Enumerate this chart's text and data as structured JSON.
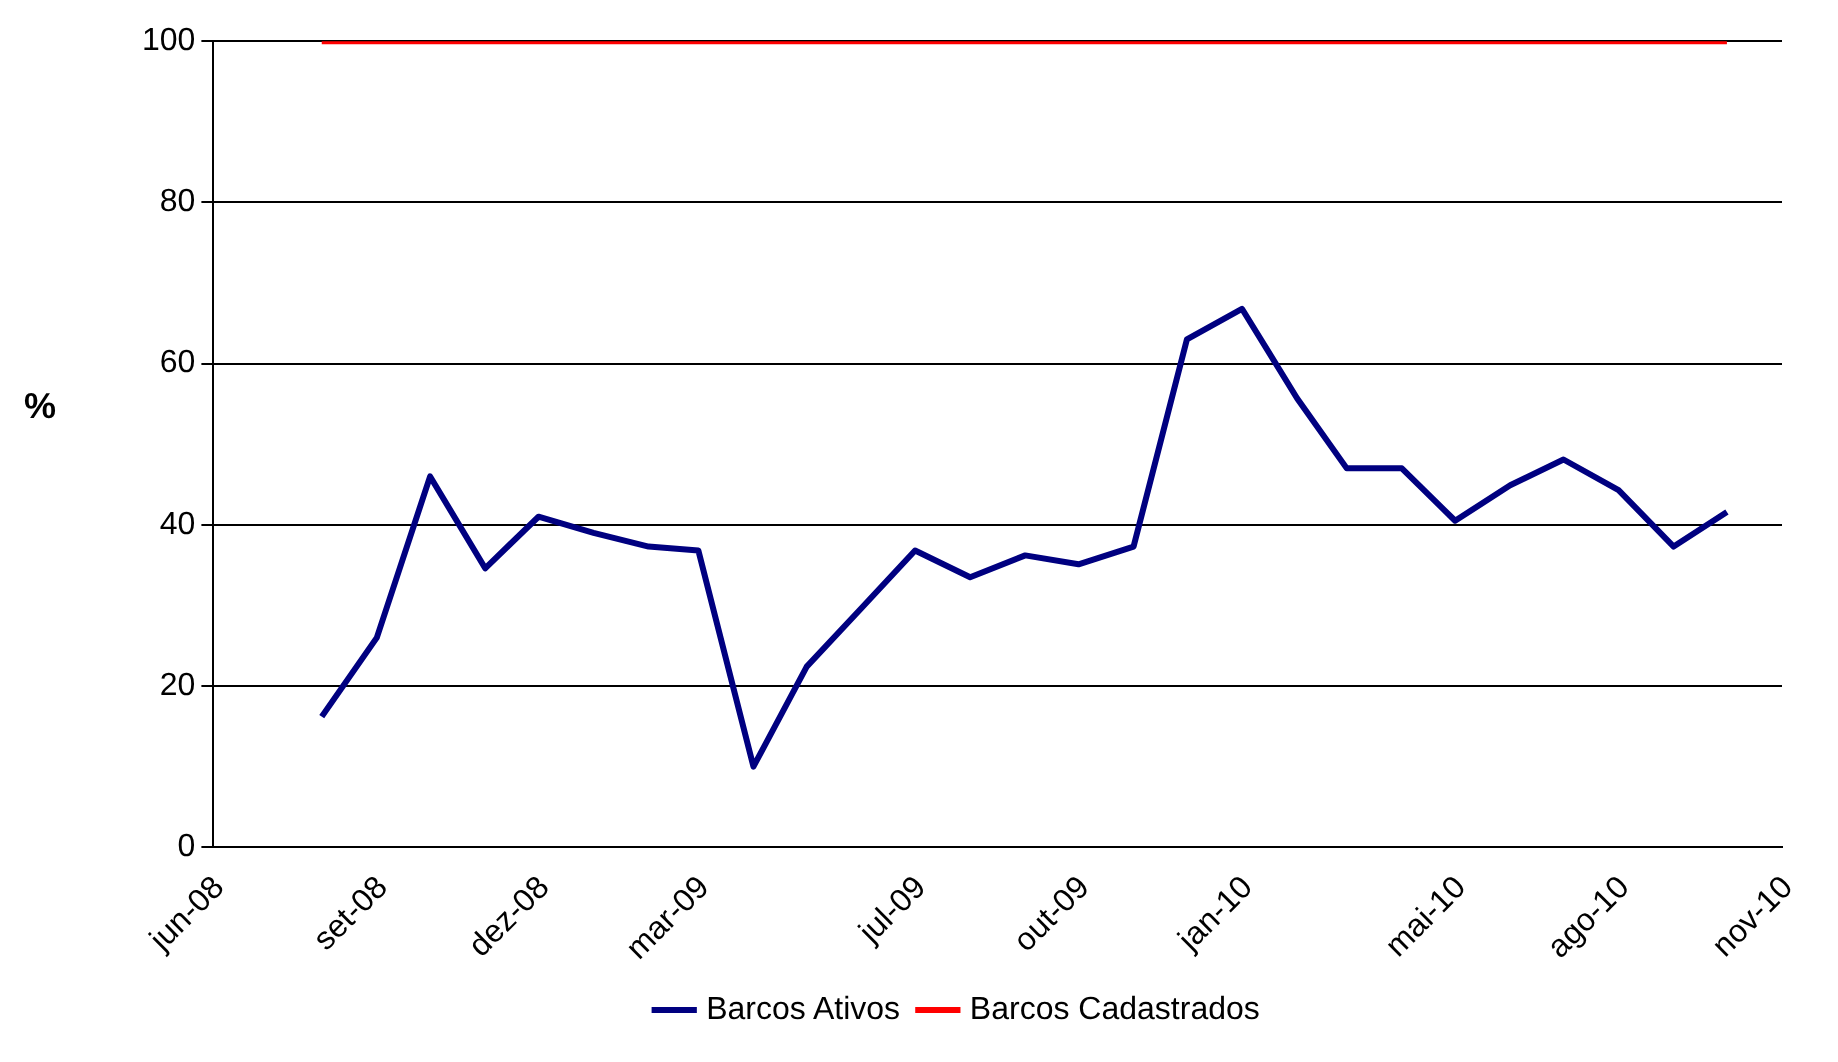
{
  "chart_data": {
    "type": "line",
    "ylabel": "%",
    "x": [
      "2008-08-01",
      "2008-09-01",
      "2008-10-01",
      "2008-11-01",
      "2008-12-01",
      "2009-01-01",
      "2009-02-01",
      "2009-03-01",
      "2009-04-01",
      "2009-05-01",
      "2009-06-01",
      "2009-07-01",
      "2009-08-01",
      "2009-09-01",
      "2009-10-01",
      "2009-11-01",
      "2009-12-01",
      "2010-01-01",
      "2010-02-01",
      "2010-03-01",
      "2010-04-01",
      "2010-05-01",
      "2010-06-01",
      "2010-07-01",
      "2010-08-01",
      "2010-09-01",
      "2010-10-01"
    ],
    "series": [
      {
        "name": "Barcos Ativos",
        "color": "#000080",
        "values": [
          16.2,
          26,
          46,
          34.6,
          41,
          39,
          37.3,
          36.8,
          10,
          22.4,
          29.7,
          36.8,
          33.5,
          36.2,
          35.1,
          37.3,
          63,
          66.8,
          55.7,
          47,
          47,
          40.5,
          44.9,
          48.1,
          44.3,
          37.3,
          41.6
        ]
      },
      {
        "name": "Barcos Cadastrados",
        "color": "#ff0000",
        "values": [
          100,
          100,
          100,
          100,
          100,
          100,
          100,
          100,
          100,
          100,
          100,
          100,
          100,
          100,
          100,
          100,
          100,
          100,
          100,
          100,
          100,
          100,
          100,
          100,
          100,
          100,
          100
        ]
      }
    ],
    "xlim": [
      "2008-06-01",
      "2010-11-01"
    ],
    "xticks": [
      {
        "value": "2008-06-01",
        "label": "jun-08"
      },
      {
        "value": "2008-09-01",
        "label": "set-08"
      },
      {
        "value": "2008-12-01",
        "label": "dez-08"
      },
      {
        "value": "2009-03-01",
        "label": "mar-09"
      },
      {
        "value": "2009-07-01",
        "label": "jul-09"
      },
      {
        "value": "2009-10-01",
        "label": "out-09"
      },
      {
        "value": "2010-01-01",
        "label": "jan-10"
      },
      {
        "value": "2010-05-01",
        "label": "mai-10"
      },
      {
        "value": "2010-08-01",
        "label": "ago-10"
      },
      {
        "value": "2010-11-01",
        "label": "nov-10"
      }
    ],
    "ylim": [
      0,
      100
    ],
    "yticks": [
      0,
      20,
      40,
      60,
      80,
      100
    ],
    "grid": "y",
    "legend": "bottom",
    "marker": "none",
    "line_style": "solid"
  }
}
